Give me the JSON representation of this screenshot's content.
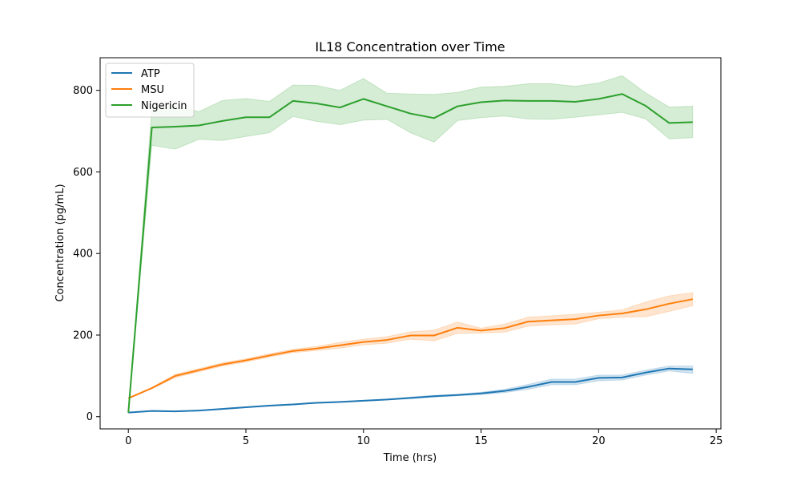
{
  "chart_data": {
    "type": "line",
    "title": "IL18 Concentration over Time",
    "xlabel": "Time (hrs)",
    "ylabel": "Concentration (pg/mL)",
    "xlim": [
      -1.2,
      25.2
    ],
    "ylim": [
      -30,
      880
    ],
    "xticks": [
      0,
      5,
      10,
      15,
      20,
      25
    ],
    "yticks": [
      0,
      200,
      400,
      600,
      800
    ],
    "grid": false,
    "legend_position": "upper-left",
    "x": [
      0,
      1,
      2,
      3,
      4,
      5,
      6,
      7,
      8,
      9,
      10,
      11,
      12,
      13,
      14,
      15,
      16,
      17,
      18,
      19,
      20,
      21,
      22,
      23,
      24
    ],
    "series": [
      {
        "name": "ATP",
        "color": "#1f77b4",
        "values": [
          10,
          14,
          13,
          15,
          19,
          23,
          27,
          30,
          34,
          36,
          39,
          42,
          46,
          50,
          53,
          57,
          63,
          73,
          85,
          85,
          95,
          96,
          108,
          118,
          116
        ],
        "lower": [
          10,
          13,
          12,
          14,
          18,
          22,
          26,
          29,
          33,
          35,
          38,
          41,
          44,
          48,
          51,
          54,
          59,
          67,
          78,
          78,
          88,
          90,
          102,
          112,
          106
        ],
        "upper": [
          10,
          15,
          14,
          16,
          20,
          24,
          28,
          31,
          35,
          37,
          40,
          43,
          48,
          52,
          55,
          60,
          67,
          79,
          92,
          92,
          102,
          102,
          114,
          124,
          124
        ]
      },
      {
        "name": "MSU",
        "color": "#ff7f0e",
        "values": [
          45,
          70,
          100,
          114,
          128,
          138,
          150,
          161,
          167,
          175,
          183,
          188,
          199,
          199,
          218,
          211,
          217,
          233,
          236,
          239,
          248,
          253,
          263,
          277,
          288
        ],
        "lower": [
          45,
          68,
          96,
          110,
          124,
          134,
          146,
          157,
          162,
          168,
          176,
          180,
          190,
          186,
          204,
          205,
          207,
          222,
          225,
          227,
          240,
          244,
          245,
          258,
          272
        ],
        "upper": [
          45,
          72,
          104,
          118,
          132,
          142,
          154,
          165,
          172,
          182,
          190,
          196,
          208,
          212,
          232,
          217,
          227,
          244,
          247,
          251,
          256,
          262,
          281,
          296,
          304
        ]
      },
      {
        "name": "Nigericin",
        "color": "#2ca02c",
        "values": [
          10,
          709,
          711,
          714,
          725,
          734,
          734,
          774,
          768,
          758,
          779,
          761,
          743,
          732,
          761,
          771,
          775,
          774,
          774,
          772,
          779,
          791,
          762,
          720,
          722
        ],
        "lower": [
          10,
          665,
          656,
          680,
          677,
          687,
          696,
          736,
          724,
          716,
          727,
          729,
          696,
          673,
          726,
          733,
          737,
          730,
          729,
          734,
          740,
          746,
          730,
          681,
          684
        ],
        "upper": [
          10,
          755,
          760,
          748,
          775,
          780,
          773,
          813,
          812,
          800,
          829,
          793,
          791,
          790,
          795,
          808,
          810,
          816,
          816,
          810,
          818,
          836,
          794,
          759,
          761
        ]
      }
    ]
  }
}
